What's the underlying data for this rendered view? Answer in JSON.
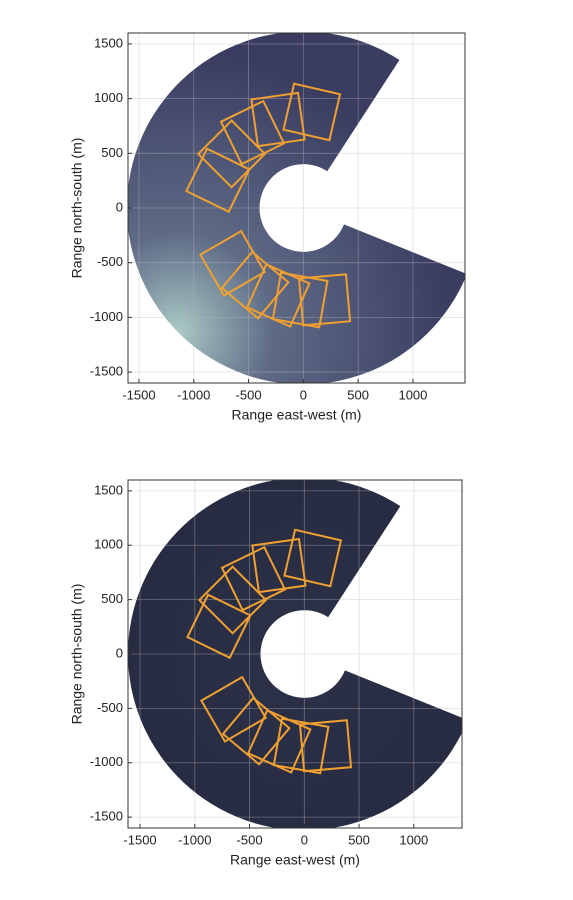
{
  "chart_data": [
    {
      "type": "image",
      "xlabel": "Range east-west  (m)",
      "ylabel": "Range north-south  (m)",
      "xlim": [
        -1600,
        1475
      ],
      "ylim": [
        -1600,
        1600
      ],
      "xticks": [
        -1500,
        -1000,
        -500,
        0,
        500,
        1000
      ],
      "yticks": [
        -1500,
        -1000,
        -500,
        0,
        500,
        1000,
        1500
      ],
      "grid": true
    },
    {
      "type": "image",
      "xlabel": "Range east-west  (m)",
      "ylabel": "Range north-south  (m)",
      "xlim": [
        -1610,
        1440
      ],
      "ylim": [
        -1600,
        1600
      ],
      "xticks": [
        -1500,
        -1000,
        -500,
        0,
        500,
        1000
      ],
      "yticks": [
        -1500,
        -1000,
        -500,
        0,
        500,
        1000,
        1500
      ],
      "grid": true
    }
  ]
}
